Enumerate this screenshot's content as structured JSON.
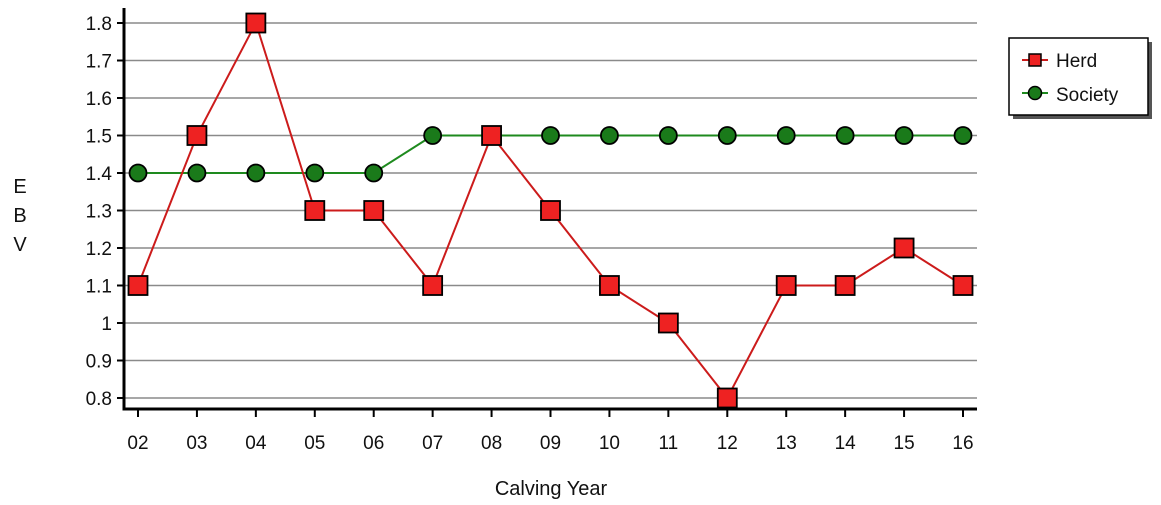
{
  "chart_data": {
    "type": "line",
    "title": "",
    "xlabel": "Calving Year",
    "ylabel": "EBV",
    "ylabel_letters": [
      "E",
      "B",
      "V"
    ],
    "categories": [
      "02",
      "03",
      "04",
      "05",
      "06",
      "07",
      "08",
      "09",
      "10",
      "11",
      "12",
      "13",
      "14",
      "15",
      "16"
    ],
    "y_ticks": [
      "0.8",
      "0.9",
      "1",
      "1.1",
      "1.2",
      "1.3",
      "1.4",
      "1.5",
      "1.6",
      "1.7",
      "1.8"
    ],
    "ylim": [
      0.77,
      1.8
    ],
    "grid": true,
    "legend_position": "top-right",
    "series": [
      {
        "name": "Herd",
        "marker": "square",
        "color": "#cc1b1b",
        "fill": "#ee2222",
        "values": [
          1.1,
          1.5,
          1.8,
          1.3,
          1.3,
          1.1,
          1.5,
          1.3,
          1.1,
          1.0,
          0.8,
          1.1,
          1.1,
          1.2,
          1.1
        ]
      },
      {
        "name": "Society",
        "marker": "circle",
        "color": "#1e8a1e",
        "fill": "#1a7a1a",
        "values": [
          1.4,
          1.4,
          1.4,
          1.4,
          1.4,
          1.5,
          1.5,
          1.5,
          1.5,
          1.5,
          1.5,
          1.5,
          1.5,
          1.5,
          1.5
        ]
      }
    ]
  }
}
